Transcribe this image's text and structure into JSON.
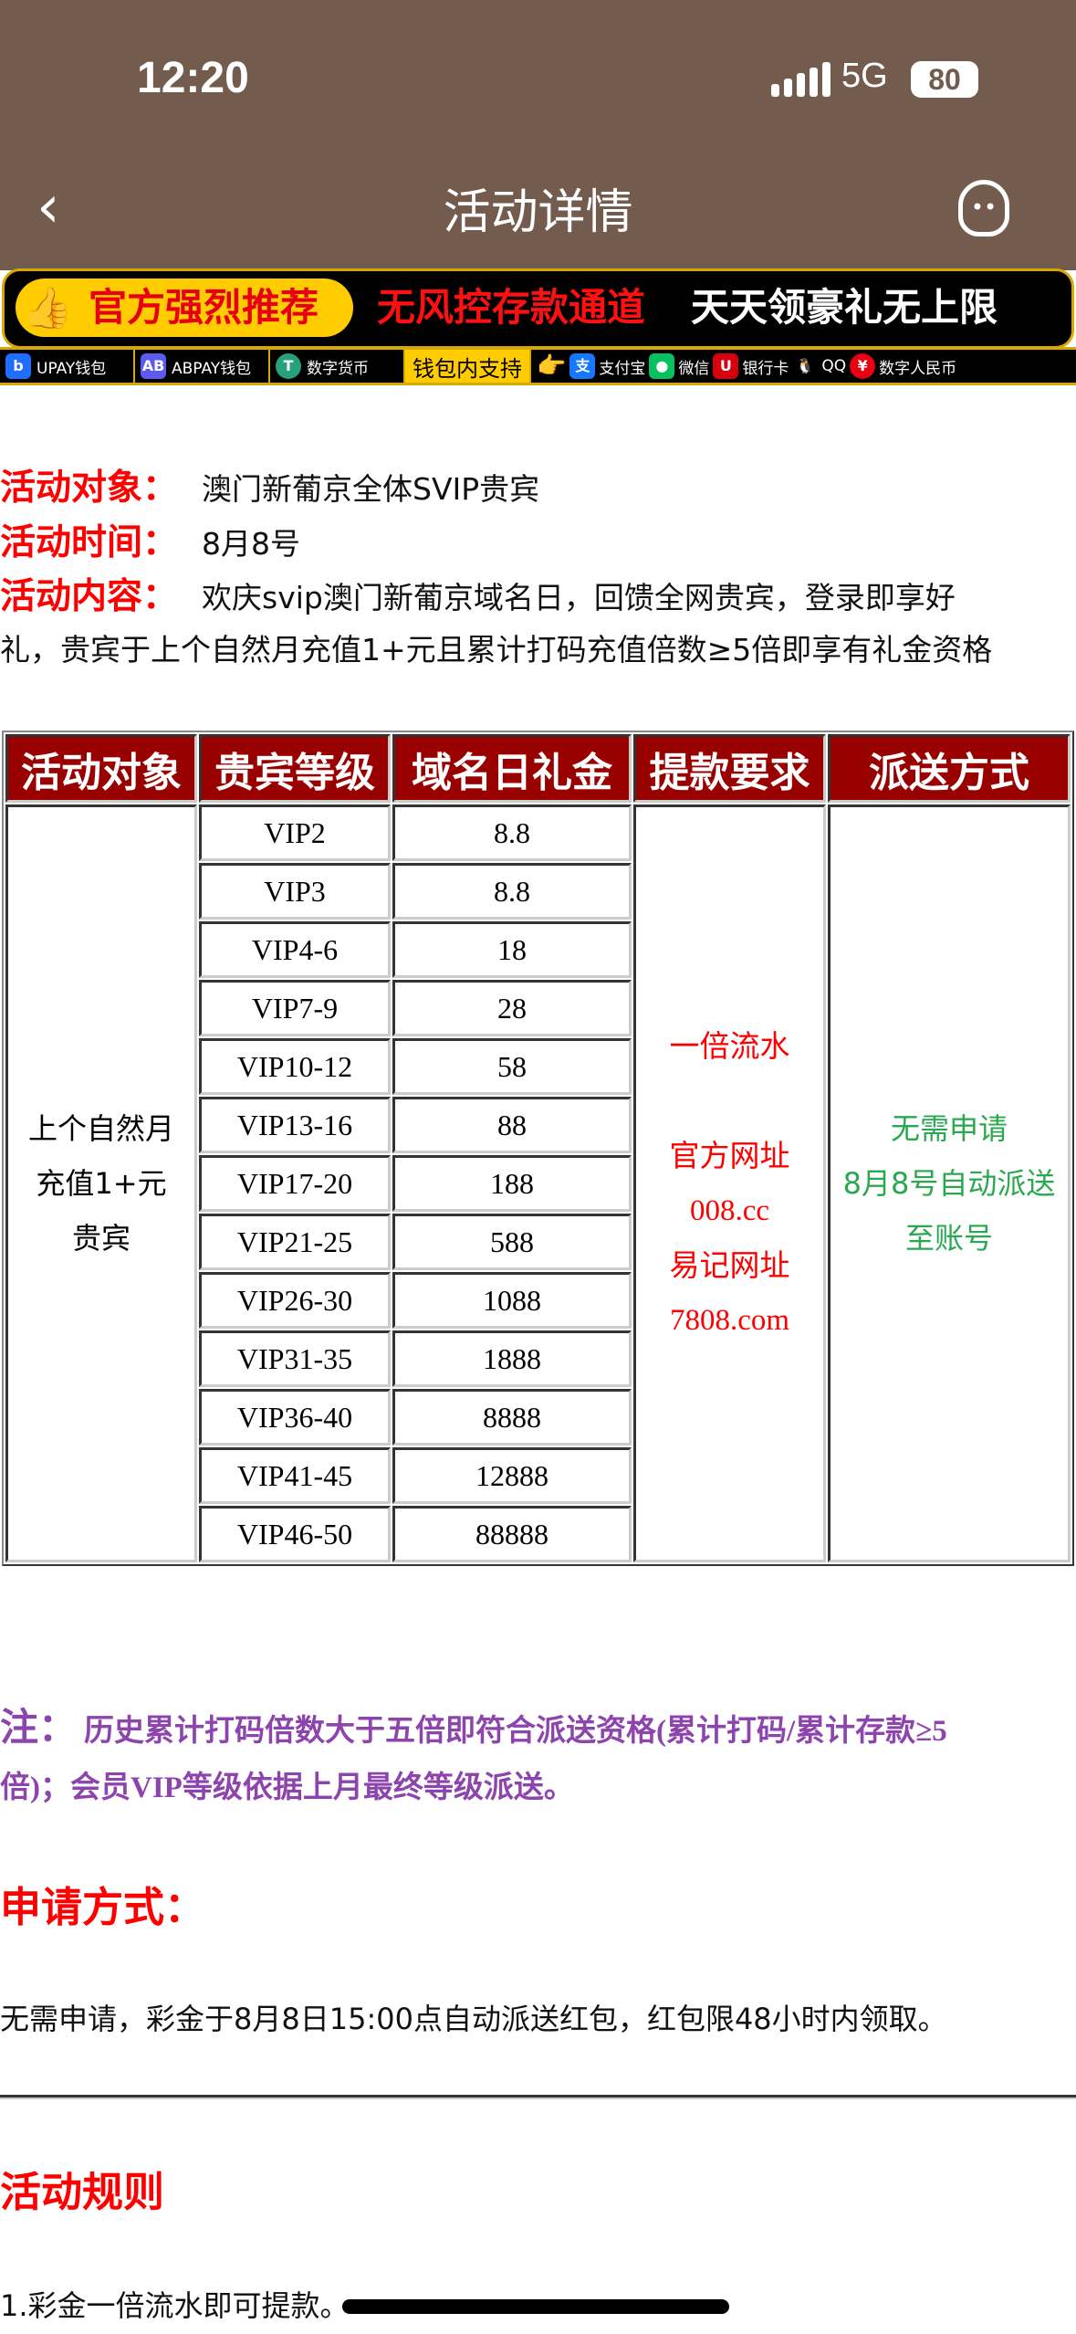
{
  "status_bar": {
    "time": "12:20",
    "network": "5G",
    "battery": "80"
  },
  "header": {
    "title": "活动详情",
    "back_icon": "chevron-left-icon",
    "support_icon": "headset-icon"
  },
  "banner": {
    "recommend": "官方强烈推荐",
    "channel": "无风控存款通道",
    "gift": "天天领豪礼无上限",
    "wallets": [
      "UPAY钱包",
      "ABPAY钱包",
      "数字货币"
    ],
    "support_label": "钱包内支持",
    "methods": [
      "支付宝",
      "微信",
      "银行卡",
      "QQ",
      "数字人民币"
    ]
  },
  "info": {
    "target_label": "活动对象：",
    "target_value": "澳门新葡京全体SVIP贵宾",
    "time_label": "活动时间：",
    "time_value": "8月8号",
    "content_label": "活动内容：",
    "content_line1": "欢庆svip澳门新葡京域名日，回馈全网贵宾，登录即享好",
    "content_line2": "礼，贵宾于上个自然月充值1+元且累计打码充值倍数≥5倍即享有礼金资格"
  },
  "table": {
    "headers": [
      "活动对象",
      "贵宾等级",
      "域名日礼金",
      "提款要求",
      "派送方式"
    ],
    "target": [
      "上个自然月",
      "充值1+元",
      "贵宾"
    ],
    "rows": [
      [
        "VIP2",
        "8.8"
      ],
      [
        "VIP3",
        "8.8"
      ],
      [
        "VIP4-6",
        "18"
      ],
      [
        "VIP7-9",
        "28"
      ],
      [
        "VIP10-12",
        "58"
      ],
      [
        "VIP13-16",
        "88"
      ],
      [
        "VIP17-20",
        "188"
      ],
      [
        "VIP21-25",
        "588"
      ],
      [
        "VIP26-30",
        "1088"
      ],
      [
        "VIP31-35",
        "1888"
      ],
      [
        "VIP36-40",
        "8888"
      ],
      [
        "VIP41-45",
        "12888"
      ],
      [
        "VIP46-50",
        "88888"
      ]
    ],
    "requirement": [
      "一倍流水",
      "",
      "官方网址",
      "008.cc",
      "易记网址",
      "7808.com"
    ],
    "delivery": [
      "无需申请",
      "8月8号自动派送",
      "至账号"
    ]
  },
  "note": {
    "label": "注：",
    "line1": "历史累计打码倍数大于五倍即符合派送资格(累计打码/累计存款≥5",
    "line2": "倍)；会员VIP等级依据上月最终等级派送。"
  },
  "apply": {
    "title": "申请方式：",
    "text": "无需申请，彩金于8月8日15:00点自动派送红包，红包限48小时内领取。"
  },
  "rules": {
    "title": "活动规则",
    "items": [
      "1.彩金一倍流水即可提款。"
    ]
  },
  "colors": {
    "header_bg": "#735c4d",
    "table_header": "#990000",
    "label_red": "#ff0000",
    "note_purple": "#8e44ad",
    "delivery_green": "#2aa84f"
  }
}
